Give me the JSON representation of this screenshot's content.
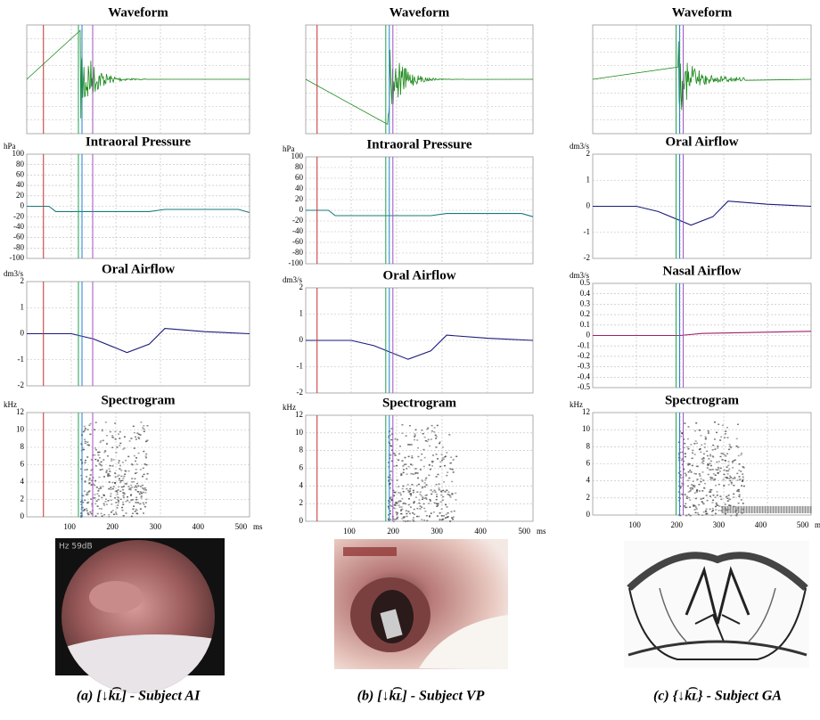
{
  "figure": {
    "columns": [
      {
        "panels": [
          {
            "title": "Waveform"
          },
          {
            "title": "Intraoral Pressure",
            "unit": "hPa",
            "yticks": [
              100,
              80,
              60,
              40,
              20,
              0,
              -20,
              -40,
              -60,
              -80,
              -100
            ]
          },
          {
            "title": "Oral Airflow",
            "unit": "dm3/s",
            "yticks": [
              2,
              1,
              0,
              -1,
              -2
            ]
          },
          {
            "title": "Spectrogram",
            "unit": "kHz",
            "yticks": [
              12,
              10,
              8,
              6,
              4,
              2,
              0
            ],
            "xticks": [
              100,
              200,
              300,
              400,
              500
            ],
            "xunit": "ms"
          }
        ],
        "caption": "(a) [↓k͡ʟ] - Subject AI"
      },
      {
        "panels": [
          {
            "title": "Waveform"
          },
          {
            "title": "Intraoral Pressure",
            "unit": "hPa",
            "yticks": [
              100,
              80,
              60,
              40,
              20,
              0,
              -20,
              -40,
              -60,
              -80,
              -100
            ]
          },
          {
            "title": "Oral Airflow",
            "unit": "dm3/s",
            "yticks": [
              2,
              1,
              0,
              -1,
              -2
            ]
          },
          {
            "title": "Spectrogram",
            "unit": "kHz",
            "yticks": [
              12,
              10,
              8,
              6,
              4,
              2,
              0
            ],
            "xticks": [
              100,
              200,
              300,
              400,
              500
            ],
            "xunit": "ms"
          }
        ],
        "caption": "(b) [↓k͡ʟ] - Subject VP"
      },
      {
        "panels": [
          {
            "title": "Waveform"
          },
          {
            "title": "Oral Airflow",
            "unit": "dm3/s",
            "yticks": [
              2,
              1,
              0,
              -1,
              -2
            ]
          },
          {
            "title": "Nasal Airflow",
            "unit": "dm3/s",
            "yticks": [
              0.5,
              0.4,
              0.3,
              0.2,
              0.1,
              0,
              -0.1,
              -0.2,
              -0.3,
              -0.4,
              -0.5
            ]
          },
          {
            "title": "Spectrogram",
            "unit": "kHz",
            "yticks": [
              12,
              10,
              8,
              6,
              4,
              2,
              0
            ],
            "xticks": [
              100,
              200,
              300,
              400,
              500
            ],
            "xunit": "ms"
          }
        ],
        "caption": "(c) {↓k͡ʟ} - Subject GA"
      }
    ]
  }
}
